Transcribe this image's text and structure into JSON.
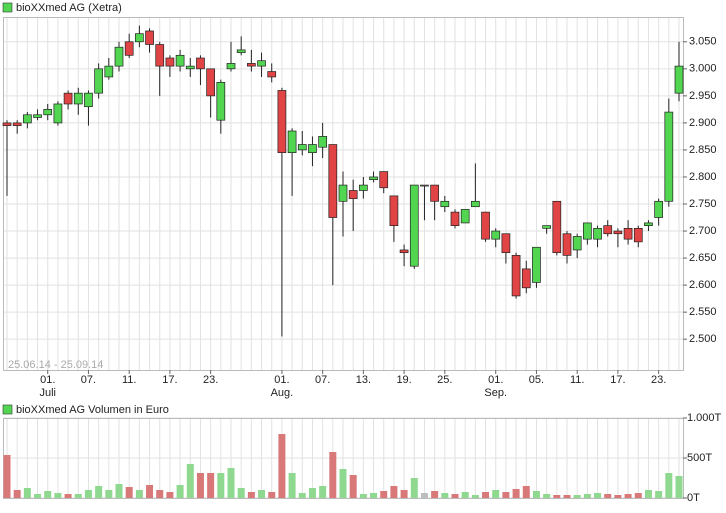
{
  "chart_data": [
    {
      "type": "candlestick",
      "legend": "bioXXmed AG (Xetra)",
      "date_range": "25.06.14 - 25.09.14",
      "up_color": "#52d652",
      "down_color": "#e04444",
      "flat_color": "#9e9e9e",
      "categories": [
        null,
        null,
        null,
        null,
        "01.",
        null,
        null,
        null,
        "07.",
        null,
        null,
        null,
        "11.",
        null,
        null,
        null,
        "17.",
        null,
        null,
        null,
        "23.",
        null,
        null,
        null,
        null,
        null,
        null,
        "01.",
        null,
        null,
        null,
        "07.",
        null,
        null,
        null,
        "13.",
        null,
        null,
        null,
        "19.",
        null,
        null,
        null,
        "25.",
        null,
        null,
        null,
        null,
        "01.",
        null,
        null,
        null,
        "05.",
        null,
        null,
        null,
        "11.",
        null,
        null,
        null,
        "17.",
        null,
        null,
        null,
        "23.",
        null,
        null
      ],
      "month_labels": [
        null,
        null,
        null,
        null,
        "Juli",
        null,
        null,
        null,
        null,
        null,
        null,
        null,
        null,
        null,
        null,
        null,
        null,
        null,
        null,
        null,
        null,
        null,
        null,
        null,
        null,
        null,
        null,
        "Aug.",
        null,
        null,
        null,
        null,
        null,
        null,
        null,
        null,
        null,
        null,
        null,
        null,
        null,
        null,
        null,
        null,
        null,
        null,
        null,
        null,
        "Sep.",
        null,
        null,
        null,
        null,
        null,
        null,
        null,
        null,
        null,
        null,
        null,
        null,
        null,
        null,
        null,
        null,
        null,
        null
      ],
      "open": [
        2.9,
        2.9,
        2.9,
        2.91,
        2.915,
        2.9,
        2.955,
        2.935,
        2.93,
        2.955,
        2.985,
        3.005,
        3.05,
        3.05,
        3.07,
        3.045,
        3.02,
        3.005,
        3.0,
        3.02,
        3.0,
        2.905,
        3.0,
        3.03,
        3.01,
        3.005,
        2.995,
        2.96,
        2.845,
        2.85,
        2.845,
        2.855,
        2.86,
        2.755,
        2.775,
        2.775,
        2.795,
        2.81,
        2.765,
        2.665,
        2.635,
        2.785,
        2.785,
        2.745,
        2.735,
        2.715,
        2.745,
        2.735,
        2.685,
        2.695,
        2.655,
        2.63,
        2.605,
        2.705,
        2.755,
        2.695,
        2.665,
        2.685,
        2.685,
        2.71,
        2.7,
        2.705,
        2.705,
        2.71,
        2.725,
        2.755,
        2.955
      ],
      "high": [
        2.905,
        2.905,
        2.92,
        2.925,
        2.935,
        2.94,
        2.96,
        2.965,
        2.96,
        3.01,
        3.02,
        3.05,
        3.065,
        3.08,
        3.075,
        3.05,
        3.025,
        3.035,
        3.02,
        3.025,
        3.0,
        2.98,
        3.05,
        3.06,
        3.035,
        3.03,
        3.01,
        2.965,
        2.89,
        2.885,
        2.875,
        2.9,
        2.86,
        2.81,
        2.795,
        2.8,
        2.81,
        2.81,
        2.765,
        2.675,
        2.785,
        2.785,
        2.785,
        2.765,
        2.74,
        2.74,
        2.825,
        2.735,
        2.705,
        2.695,
        2.66,
        2.645,
        2.67,
        2.71,
        2.755,
        2.7,
        2.695,
        2.715,
        2.71,
        2.72,
        2.705,
        2.72,
        2.71,
        2.72,
        2.76,
        2.945,
        3.05
      ],
      "low": [
        2.765,
        2.88,
        2.89,
        2.905,
        2.905,
        2.895,
        2.925,
        2.915,
        2.895,
        2.945,
        2.98,
        2.995,
        3.02,
        3.04,
        3.03,
        2.95,
        2.985,
        2.995,
        2.985,
        2.97,
        2.91,
        2.88,
        2.995,
        3.025,
        2.995,
        2.985,
        2.975,
        2.505,
        2.765,
        2.84,
        2.82,
        2.835,
        2.6,
        2.69,
        2.7,
        2.76,
        2.79,
        2.77,
        2.68,
        2.635,
        2.63,
        2.72,
        2.72,
        2.735,
        2.705,
        2.715,
        2.745,
        2.68,
        2.67,
        2.64,
        2.575,
        2.585,
        2.595,
        2.695,
        2.655,
        2.64,
        2.65,
        2.675,
        2.67,
        2.69,
        2.67,
        2.675,
        2.67,
        2.7,
        2.71,
        2.745,
        2.94
      ],
      "close": [
        2.895,
        2.895,
        2.915,
        2.915,
        2.925,
        2.935,
        2.935,
        2.955,
        2.955,
        3.0,
        3.005,
        3.04,
        3.025,
        3.065,
        3.045,
        3.005,
        3.005,
        3.025,
        3.005,
        3.0,
        2.95,
        2.975,
        3.01,
        3.035,
        3.005,
        3.015,
        2.985,
        2.845,
        2.885,
        2.86,
        2.86,
        2.875,
        2.725,
        2.785,
        2.76,
        2.785,
        2.8,
        2.78,
        2.71,
        2.66,
        2.785,
        2.785,
        2.755,
        2.755,
        2.71,
        2.74,
        2.755,
        2.685,
        2.7,
        2.66,
        2.58,
        2.595,
        2.67,
        2.71,
        2.66,
        2.655,
        2.69,
        2.715,
        2.705,
        2.695,
        2.695,
        2.685,
        2.68,
        2.715,
        2.755,
        2.92,
        3.005
      ],
      "ylim": [
        2.443,
        3.094
      ],
      "yticks": [
        {
          "value": 2.5,
          "label": "2.500"
        },
        {
          "value": 2.55,
          "label": "2.550"
        },
        {
          "value": 2.6,
          "label": "2.600"
        },
        {
          "value": 2.65,
          "label": "2.650"
        },
        {
          "value": 2.7,
          "label": "2.700"
        },
        {
          "value": 2.75,
          "label": "2.750"
        },
        {
          "value": 2.8,
          "label": "2.800"
        },
        {
          "value": 2.85,
          "label": "2.850"
        },
        {
          "value": 2.9,
          "label": "2.900"
        },
        {
          "value": 2.95,
          "label": "2.950"
        },
        {
          "value": 3.0,
          "label": "3.000"
        },
        {
          "value": 3.05,
          "label": "3.050"
        }
      ]
    },
    {
      "type": "bar",
      "legend": "bioXXmed AG Volumen in Euro",
      "up_color": "#8fd88f",
      "down_color": "#d97878",
      "flat_color": "#bdbdbd",
      "values": [
        537.5,
        100,
        125,
        50,
        87.5,
        62.5,
        50,
        50,
        100,
        150,
        100,
        175,
        137.5,
        100,
        162.5,
        100,
        75,
        162.5,
        425,
        312.5,
        312.5,
        312.5,
        375,
        125,
        75,
        100,
        75,
        800,
        312.5,
        62.5,
        125,
        150,
        575,
        362.5,
        287.5,
        50,
        62.5,
        87.5,
        150,
        100,
        250,
        62.5,
        87.5,
        62.5,
        50,
        75,
        37.5,
        75,
        100,
        75,
        112.5,
        150,
        87.5,
        50,
        37.5,
        37.5,
        37.5,
        50,
        62.5,
        50,
        37.5,
        50,
        62.5,
        100,
        87.5,
        312.5,
        275
      ],
      "ylim": [
        0,
        1000
      ],
      "yticks": [
        {
          "value": 0,
          "label": "0T"
        },
        {
          "value": 500,
          "label": "500T"
        },
        {
          "value": 1000,
          "label": "1.000T"
        }
      ]
    }
  ]
}
